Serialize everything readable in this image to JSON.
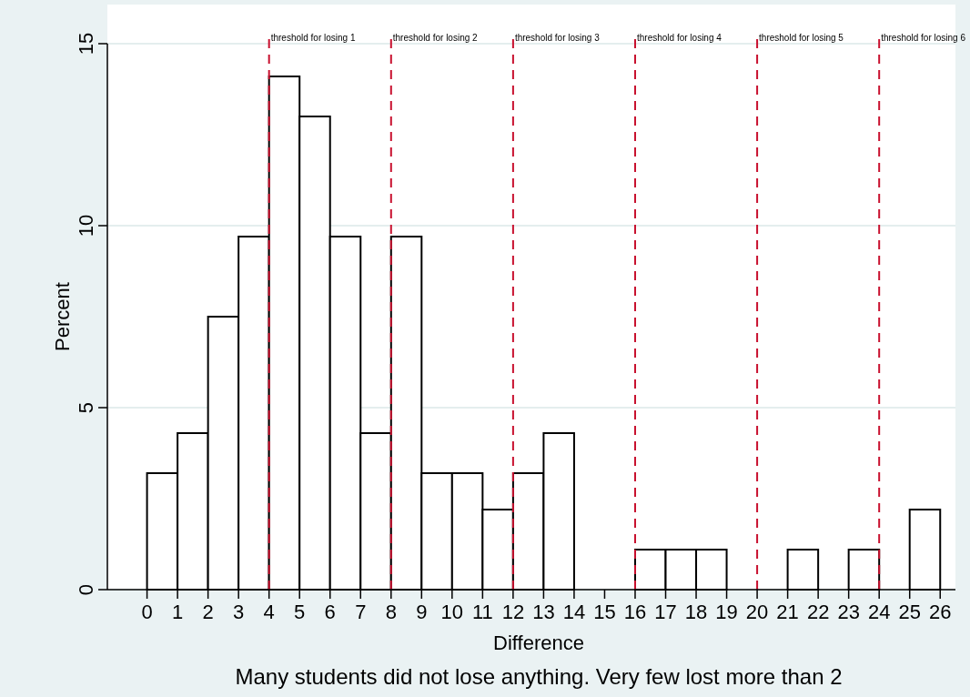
{
  "chart_data": {
    "type": "histogram",
    "xlabel": "Difference",
    "ylabel": "Percent",
    "bins": [
      0,
      1,
      2,
      3,
      4,
      5,
      6,
      7,
      8,
      9,
      10,
      11,
      12,
      13,
      14,
      15,
      16,
      17,
      18,
      19,
      20,
      21,
      22,
      23,
      24,
      25,
      26
    ],
    "values": [
      3.2,
      4.3,
      7.5,
      9.7,
      14.1,
      13.0,
      9.7,
      4.3,
      9.7,
      3.2,
      3.2,
      2.2,
      3.2,
      4.3,
      0,
      0,
      1.1,
      1.1,
      1.1,
      0,
      0,
      1.1,
      0,
      1.1,
      0,
      2.2
    ],
    "color": "#ffffff",
    "xlim": [
      -1.3,
      26.5
    ],
    "xticks": [
      0,
      1,
      2,
      3,
      4,
      5,
      6,
      7,
      8,
      9,
      10,
      11,
      12,
      13,
      14,
      15,
      16,
      17,
      18,
      19,
      20,
      21,
      22,
      23,
      24,
      25,
      26
    ],
    "ylim": [
      0,
      15
    ],
    "yticks": [
      0,
      5,
      10,
      15
    ],
    "grid": "y",
    "ref_lines": [
      {
        "axis": "x",
        "value": 4,
        "label": "threshold for losing 1",
        "color": "#c8102e",
        "line_style": "dashed"
      },
      {
        "axis": "x",
        "value": 8,
        "label": "threshold for losing 2",
        "color": "#c8102e",
        "line_style": "dashed"
      },
      {
        "axis": "x",
        "value": 12,
        "label": "threshold for losing 3",
        "color": "#c8102e",
        "line_style": "dashed"
      },
      {
        "axis": "x",
        "value": 16,
        "label": "threshold for losing 4",
        "color": "#c8102e",
        "line_style": "dashed"
      },
      {
        "axis": "x",
        "value": 20,
        "label": "threshold for losing 5",
        "color": "#c8102e",
        "line_style": "dashed"
      },
      {
        "axis": "x",
        "value": 24,
        "label": "threshold for losing 6",
        "color": "#c8102e",
        "line_style": "dashed"
      }
    ],
    "annotations": [
      "Many students did not lose anything. Very few lost more than 2"
    ]
  }
}
